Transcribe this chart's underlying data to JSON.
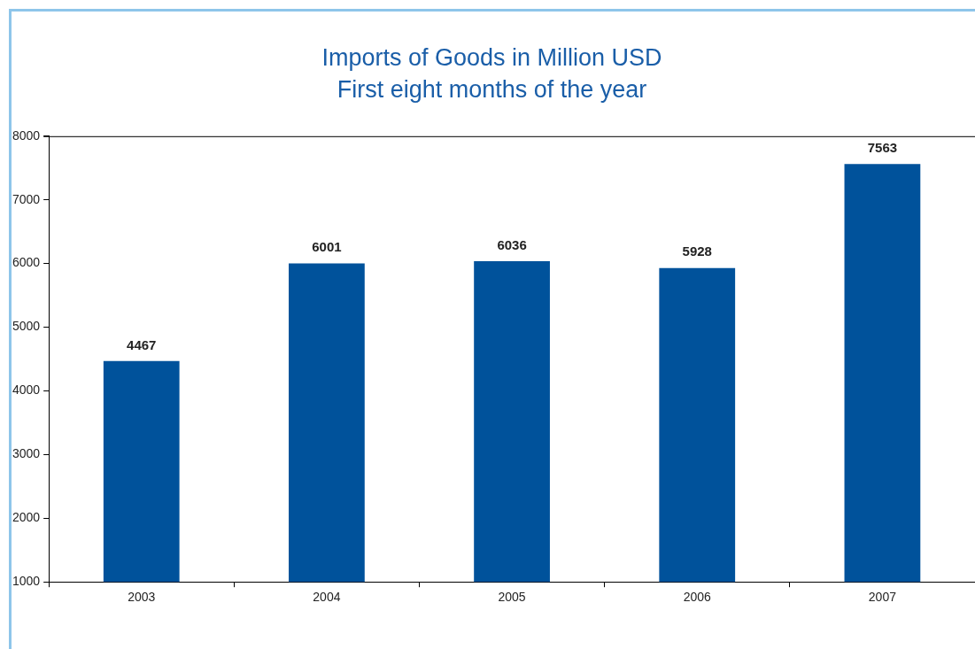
{
  "chart_data": {
    "type": "bar",
    "title": "Imports of Goods in Million USD",
    "subtitle": "First eight months of the year",
    "categories": [
      "2003",
      "2004",
      "2005",
      "2006",
      "2007"
    ],
    "values": [
      4467,
      6001,
      6036,
      5928,
      7563
    ],
    "color": "#00529b",
    "ylim": [
      1000,
      8000
    ],
    "yticks": [
      1000,
      2000,
      3000,
      4000,
      5000,
      6000,
      7000,
      8000
    ],
    "grid": false,
    "legend": false,
    "data_labels": true
  }
}
